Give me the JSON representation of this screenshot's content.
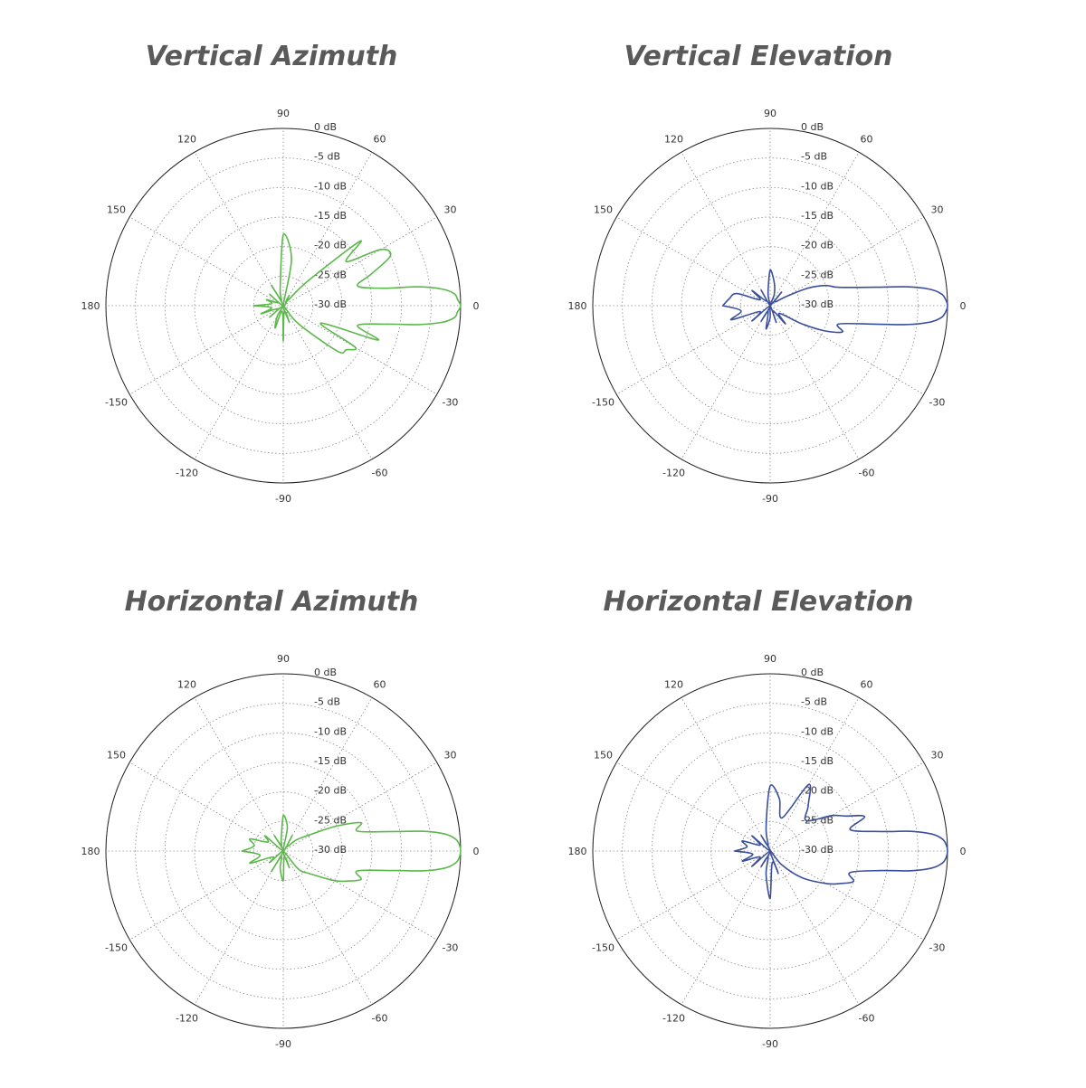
{
  "colors": {
    "green": "#5bb84a",
    "blue": "#3a4f9c",
    "grid": "#8a8a8a",
    "outline": "#222222"
  },
  "angle_labels": [
    "90",
    "60",
    "30",
    "0",
    "-30",
    "-60",
    "-90",
    "-120",
    "-150",
    "180",
    "150",
    "120"
  ],
  "angle_values": [
    90,
    60,
    30,
    0,
    -30,
    -60,
    -90,
    -120,
    -150,
    180,
    150,
    120
  ],
  "db_labels": [
    "0 dB",
    "-5 dB",
    "-10 dB",
    "-15 dB",
    "-20 dB",
    "-25 dB",
    "-30 dB"
  ],
  "chart_data": [
    {
      "type": "polar-line",
      "title": "Vertical Azimuth",
      "color": "#5bb84a",
      "r_range_db": [
        -30,
        0
      ],
      "theta_deg": [
        -180,
        -170,
        -160,
        -150,
        -140,
        -130,
        -120,
        -110,
        -100,
        -90,
        -80,
        -70,
        -60,
        -50,
        -40,
        -35,
        -30,
        -25,
        -20,
        -15,
        -10,
        -8,
        -6,
        -4,
        -2,
        0,
        2,
        4,
        6,
        8,
        10,
        15,
        20,
        25,
        30,
        35,
        40,
        45,
        50,
        60,
        70,
        80,
        90,
        100,
        110,
        120,
        130,
        140,
        150,
        160,
        170,
        180
      ],
      "r_db": [
        -25,
        -28,
        -26,
        -29,
        -27,
        -30,
        -28,
        -26,
        -29,
        -24,
        -29,
        -27,
        -30,
        -26,
        -18,
        -17,
        -16,
        -23,
        -13,
        -17,
        -12,
        -7,
        -3,
        -1,
        -0.5,
        0,
        -0.5,
        -1,
        -3,
        -7,
        -13,
        -17,
        -14,
        -10,
        -11,
        -17,
        -13,
        -24,
        -29,
        -28,
        -30,
        -22,
        -18,
        -27,
        -29,
        -26,
        -30,
        -27,
        -29,
        -27,
        -28,
        -25
      ]
    },
    {
      "type": "polar-line",
      "title": "Vertical Elevation",
      "color": "#3a4f9c",
      "r_range_db": [
        -30,
        0
      ],
      "theta_deg": [
        -180,
        -170,
        -160,
        -150,
        -140,
        -130,
        -120,
        -110,
        -100,
        -90,
        -80,
        -70,
        -60,
        -50,
        -40,
        -30,
        -25,
        -20,
        -15,
        -10,
        -8,
        -6,
        -4,
        -2,
        0,
        2,
        4,
        6,
        8,
        10,
        15,
        20,
        25,
        30,
        40,
        50,
        60,
        70,
        80,
        90,
        100,
        110,
        120,
        130,
        140,
        150,
        160,
        170,
        180
      ],
      "r_db": [
        -22,
        -25,
        -23,
        -28,
        -26,
        -30,
        -27,
        -29,
        -26,
        -28,
        -30,
        -27,
        -29,
        -26,
        -28,
        -24,
        -20,
        -17,
        -18,
        -12,
        -7,
        -3,
        -1,
        -0.3,
        0,
        -0.3,
        -1,
        -3,
        -7,
        -12,
        -18,
        -20,
        -23,
        -27,
        -29,
        -27,
        -30,
        -28,
        -26,
        -24,
        -28,
        -30,
        -27,
        -29,
        -26,
        -28,
        -24,
        -23,
        -22
      ]
    },
    {
      "type": "polar-line",
      "title": "Horizontal Azimuth",
      "color": "#5bb84a",
      "r_range_db": [
        -30,
        0
      ],
      "theta_deg": [
        -180,
        -170,
        -160,
        -150,
        -140,
        -130,
        -120,
        -110,
        -100,
        -90,
        -80,
        -70,
        -60,
        -50,
        -40,
        -30,
        -25,
        -20,
        -15,
        -10,
        -8,
        -6,
        -4,
        -2,
        0,
        2,
        4,
        6,
        8,
        10,
        15,
        20,
        25,
        30,
        40,
        50,
        60,
        70,
        80,
        90,
        100,
        110,
        120,
        130,
        140,
        150,
        160,
        170,
        180
      ],
      "r_db": [
        -23,
        -26,
        -24,
        -28,
        -27,
        -30,
        -26,
        -29,
        -27,
        -25,
        -29,
        -27,
        -30,
        -26,
        -24,
        -20,
        -18,
        -16,
        -17,
        -11,
        -6,
        -2.5,
        -0.8,
        -0.2,
        0,
        -0.2,
        -0.8,
        -2.5,
        -6,
        -11,
        -17,
        -16,
        -20,
        -24,
        -27,
        -29,
        -27,
        -30,
        -26,
        -24,
        -28,
        -29,
        -27,
        -30,
        -26,
        -27,
        -24,
        -25,
        -23
      ]
    },
    {
      "type": "polar-line",
      "title": "Horizontal Elevation",
      "color": "#3a4f9c",
      "r_range_db": [
        -30,
        0
      ],
      "theta_deg": [
        -180,
        -170,
        -160,
        -150,
        -140,
        -130,
        -120,
        -110,
        -100,
        -90,
        -80,
        -70,
        -60,
        -50,
        -40,
        -30,
        -25,
        -20,
        -15,
        -10,
        -8,
        -6,
        -4,
        -2,
        0,
        2,
        4,
        6,
        8,
        10,
        15,
        20,
        25,
        30,
        40,
        50,
        60,
        70,
        80,
        90,
        100,
        110,
        120,
        130,
        140,
        150,
        160,
        170,
        180
      ],
      "r_db": [
        -24,
        -27,
        -25,
        -28,
        -26,
        -30,
        -27,
        -29,
        -26,
        -22,
        -28,
        -26,
        -30,
        -27,
        -23,
        -19,
        -17,
        -15,
        -16,
        -11,
        -6,
        -2.5,
        -0.8,
        -0.2,
        0,
        -0.2,
        -0.8,
        -2.5,
        -6,
        -11,
        -16,
        -13,
        -16,
        -18,
        -22,
        -20,
        -17,
        -24,
        -21,
        -19,
        -26,
        -29,
        -27,
        -30,
        -26,
        -28,
        -25,
        -26,
        -24
      ]
    }
  ]
}
